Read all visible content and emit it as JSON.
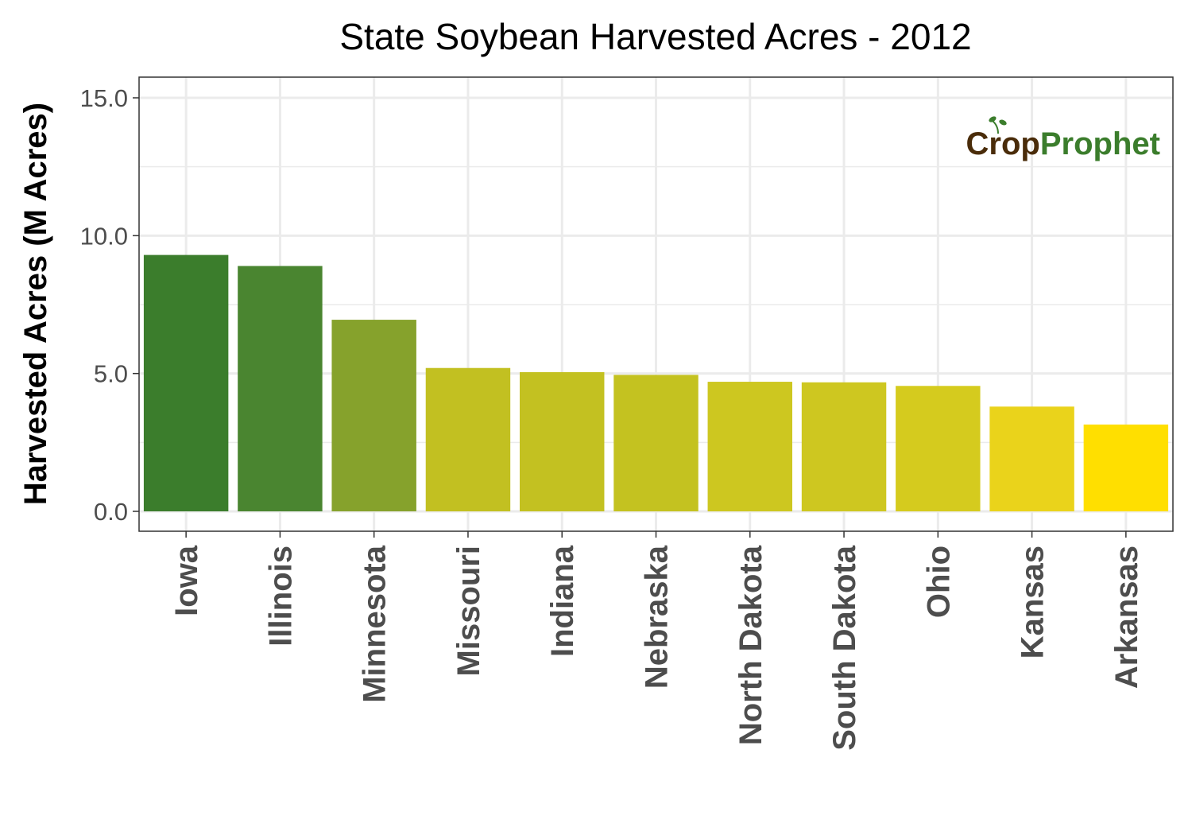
{
  "chart_data": {
    "type": "bar",
    "title": "State Soybean Harvested Acres - 2012",
    "xlabel": "",
    "ylabel": "Harvested Acres (M Acres)",
    "categories": [
      "Iowa",
      "Illinois",
      "Minnesota",
      "Missouri",
      "Indiana",
      "Nebraska",
      "North Dakota",
      "South Dakota",
      "Ohio",
      "Kansas",
      "Arkansas"
    ],
    "values": [
      9.3,
      8.9,
      6.95,
      5.2,
      5.05,
      4.95,
      4.7,
      4.68,
      4.55,
      3.8,
      3.15
    ],
    "bar_colors": [
      "#3b7d2c",
      "#4a8530",
      "#86a22c",
      "#c2c021",
      "#c3c121",
      "#c4c220",
      "#cdc720",
      "#cec720",
      "#d5cb1e",
      "#ead31b",
      "#ffdf00"
    ],
    "yticks": [
      "0.0",
      "5.0",
      "10.0",
      "15.0"
    ],
    "ylim": [
      0,
      15.75
    ],
    "grid": true,
    "legend": "none"
  },
  "logo": {
    "text_crop": "Crop",
    "text_prophet": "Prophet",
    "crop_color": "#4a2c0a",
    "prophet_color": "#3b7d2c"
  },
  "colors": {
    "panel_border": "#333333",
    "grid": "#ebebeb",
    "tick_text": "#4d4d4d",
    "title_text": "#000000"
  }
}
